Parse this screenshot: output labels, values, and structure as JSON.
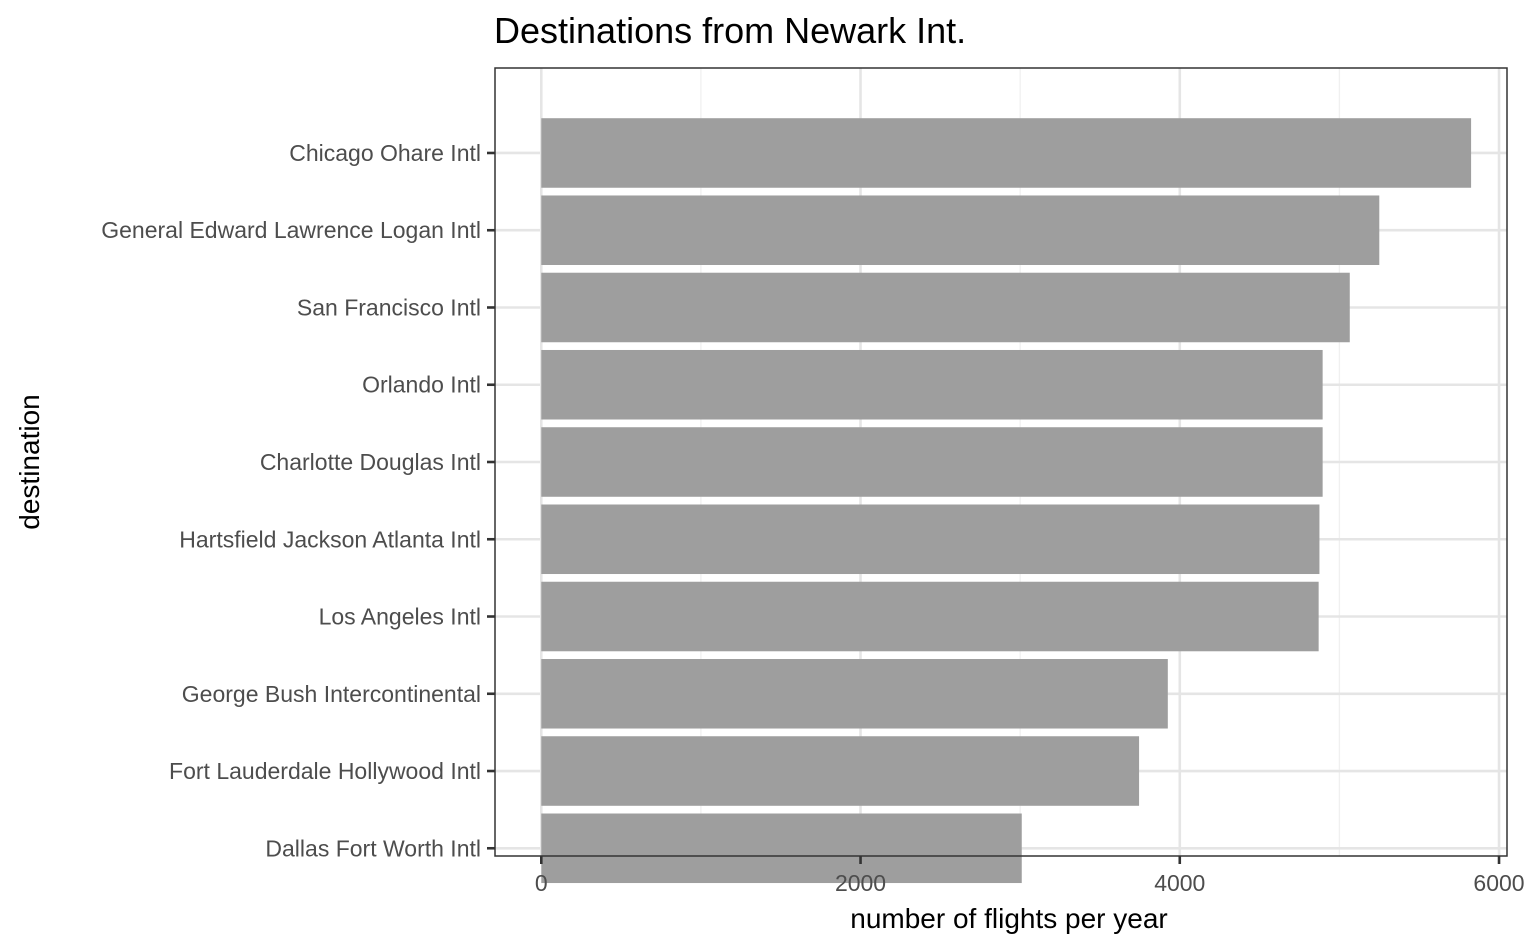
{
  "chart_data": {
    "type": "bar",
    "orientation": "horizontal",
    "title": "Destinations from Newark Int.",
    "xlabel": "number of flights per year",
    "ylabel": "destination",
    "xlim": [
      -290,
      6050
    ],
    "x_major_ticks": [
      0,
      2000,
      4000,
      6000
    ],
    "x_minor_ticks": [
      1000,
      3000,
      5000
    ],
    "x_tick_labels": [
      "0",
      "2000",
      "4000",
      "6000"
    ],
    "grid": true,
    "bar_color": "#9e9e9e",
    "categories": [
      "Chicago Ohare Intl",
      "General Edward Lawrence Logan Intl",
      "San Francisco Intl",
      "Orlando Intl",
      "Charlotte Douglas Intl",
      "Hartsfield Jackson Atlanta Intl",
      "Los Angeles Intl",
      "George Bush Intercontinental",
      "Fort Lauderdale Hollywood Intl",
      "Dallas Fort Worth Intl"
    ],
    "values": [
      5825,
      5250,
      5065,
      4895,
      4895,
      4875,
      4870,
      3925,
      3745,
      3010
    ]
  }
}
